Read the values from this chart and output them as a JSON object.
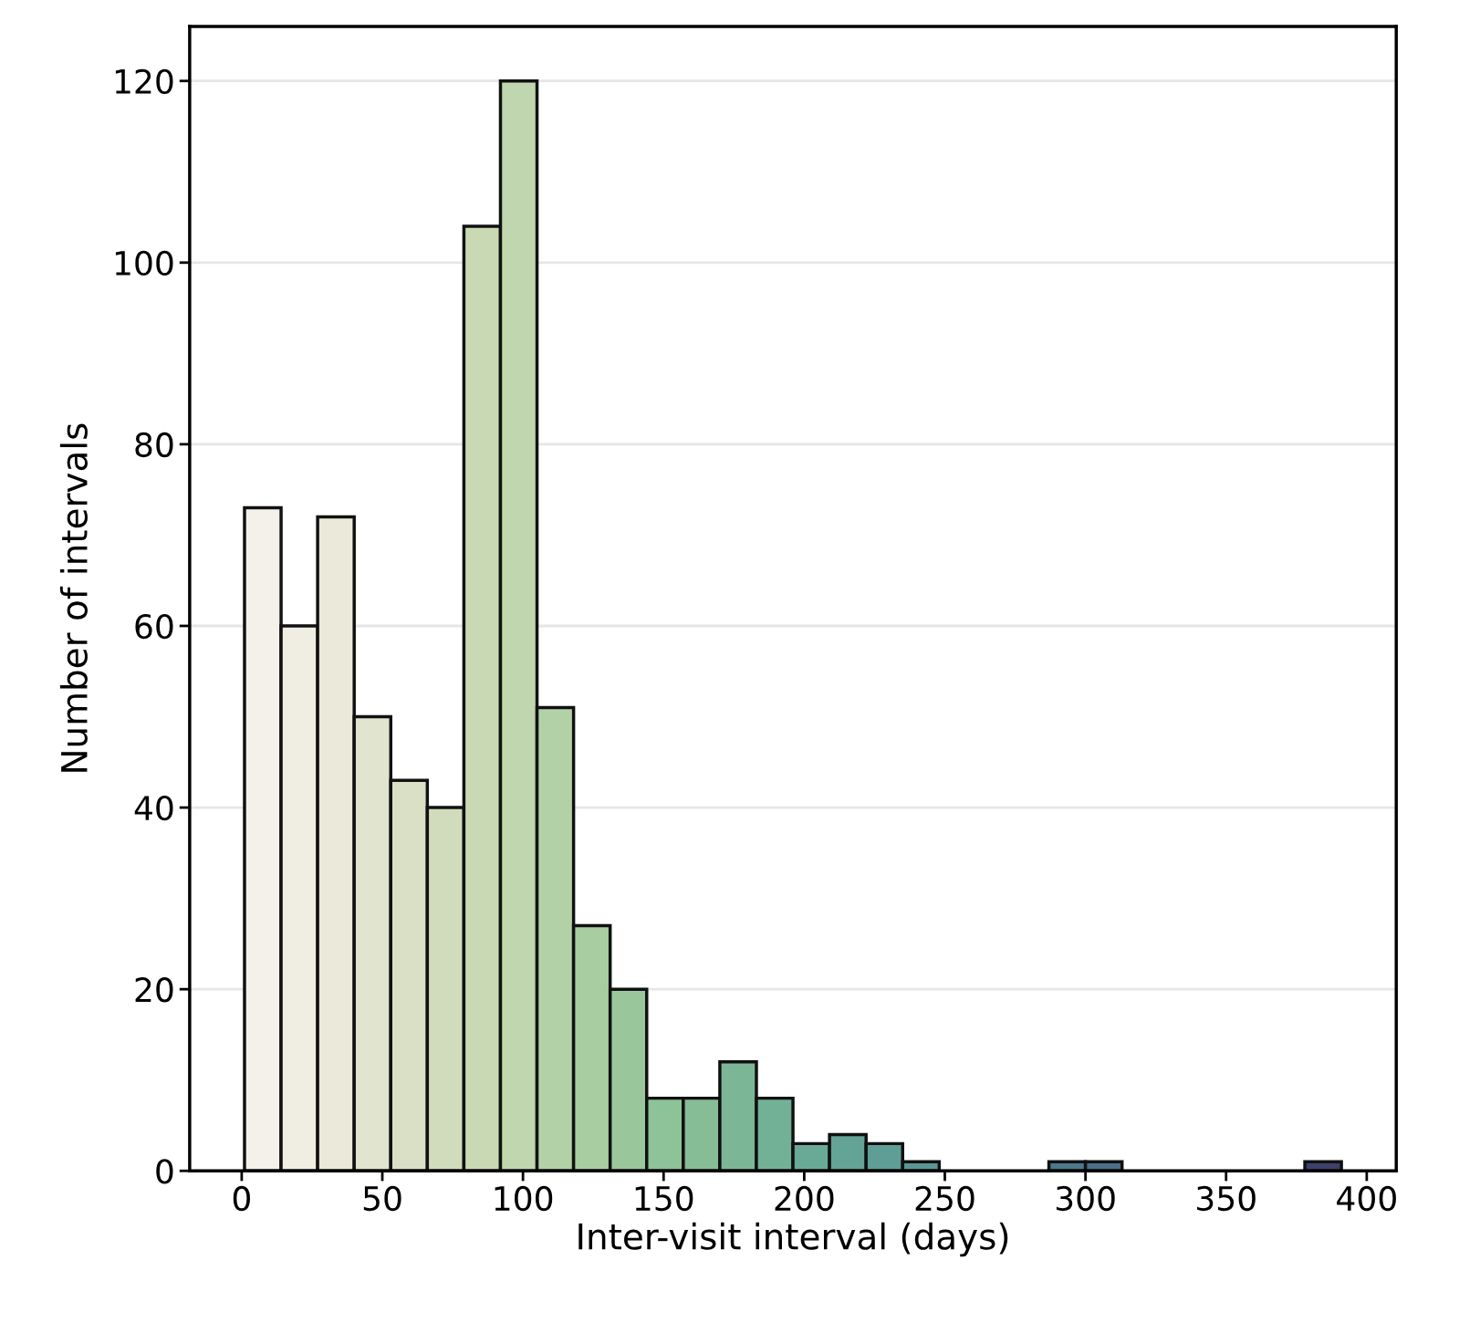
{
  "chart_data": {
    "type": "histogram",
    "xlabel": "Inter-visit interval (days)",
    "ylabel": "Number of intervals",
    "bins": [
      1,
      14,
      27,
      40,
      53,
      66,
      79,
      92,
      105,
      118,
      131,
      144,
      157,
      170,
      183,
      196,
      209,
      222,
      235,
      248,
      261,
      274,
      287,
      300,
      313,
      326,
      339,
      352,
      365,
      378,
      391
    ],
    "values": [
      73,
      60,
      72,
      50,
      43,
      40,
      104,
      120,
      51,
      27,
      20,
      8,
      8,
      12,
      8,
      3,
      4,
      3,
      1,
      0,
      0,
      0,
      1,
      1,
      0,
      0,
      0,
      0,
      0,
      1
    ],
    "colors": [
      "#f4f0ea",
      "#f0ede2",
      "#eae9da",
      "#e1e4cf",
      "#d9e0c5",
      "#d1dcbc",
      "#c9d9b4",
      "#c0d6ae",
      "#b3d1a7",
      "#a8cda1",
      "#99c79b",
      "#8ec298",
      "#86bd96",
      "#7bb796",
      "#72b196",
      "#69aa97",
      "#63a496",
      "#5e9e96",
      "#599794",
      null,
      null,
      null,
      "#4d778b",
      "#4b6f88",
      null,
      null,
      null,
      null,
      null,
      "#3e406b"
    ],
    "xlim": [
      -18.5,
      410.5
    ],
    "xticks": [
      0,
      50,
      100,
      150,
      200,
      250,
      300,
      350,
      400
    ],
    "ylim": [
      0,
      126
    ],
    "yticks": [
      0,
      20,
      40,
      60,
      80,
      100,
      120
    ],
    "grid": "y"
  }
}
